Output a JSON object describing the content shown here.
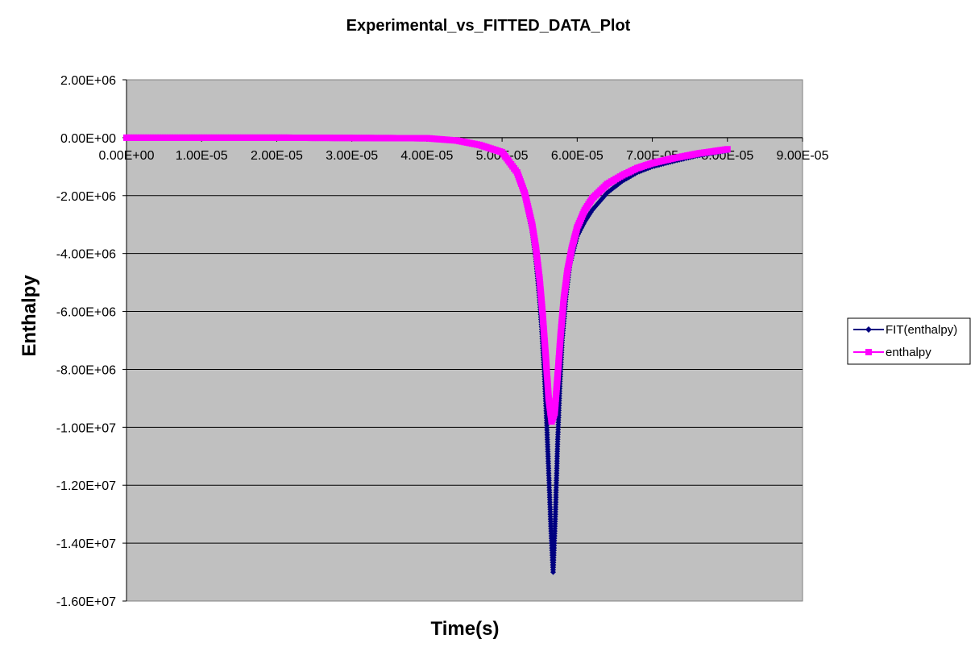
{
  "chart_data": {
    "type": "line",
    "title": "Experimental_vs_FITTED_DATA_Plot",
    "xlabel": "Time(s)",
    "ylabel": "Enthalpy",
    "xlim": [
      0,
      9e-05
    ],
    "ylim": [
      -16000000,
      2000000
    ],
    "x_ticks": [
      0,
      1e-05,
      2e-05,
      3e-05,
      4e-05,
      5e-05,
      6e-05,
      7e-05,
      8e-05,
      9e-05
    ],
    "x_tick_labels": [
      "0.00E+00",
      "1.00E-05",
      "2.00E-05",
      "3.00E-05",
      "4.00E-05",
      "5.00E-05",
      "6.00E-05",
      "7.00E-05",
      "8.00E-05",
      "9.00E-05"
    ],
    "y_ticks": [
      2000000,
      0,
      -2000000,
      -4000000,
      -6000000,
      -8000000,
      -10000000,
      -12000000,
      -14000000,
      -16000000
    ],
    "y_tick_labels": [
      "2.00E+06",
      "0.00E+00",
      "-2.00E+06",
      "-4.00E+06",
      "-6.00E+06",
      "-8.00E+06",
      "-1.00E+07",
      "-1.20E+07",
      "-1.40E+07",
      "-1.60E+07"
    ],
    "grid": "horizontal",
    "legend_position": "right",
    "plot_background": "#c0c0c0",
    "series": [
      {
        "name": "FIT(enthalpy)",
        "color": "#000080",
        "marker": "diamond",
        "x": [
          0,
          2e-05,
          4e-05,
          4.4e-05,
          4.7e-05,
          5e-05,
          5.2e-05,
          5.3e-05,
          5.4e-05,
          5.45e-05,
          5.5e-05,
          5.53e-05,
          5.56e-05,
          5.59e-05,
          5.62e-05,
          5.65e-05,
          5.68e-05,
          5.71e-05,
          5.74e-05,
          5.77e-05,
          5.8e-05,
          5.85e-05,
          5.9e-05,
          6e-05,
          6.1e-05,
          6.2e-05,
          6.4e-05,
          6.6e-05,
          6.8e-05,
          7e-05,
          7.3e-05,
          7.6e-05,
          8e-05
        ],
        "y": [
          0,
          0,
          -20000,
          -100000,
          -250000,
          -500000,
          -1200000,
          -2000000,
          -3200000,
          -4200000,
          -5600000,
          -6700000,
          -8000000,
          -9600000,
          -11500000,
          -13500000,
          -15000000,
          -13000000,
          -10500000,
          -8500000,
          -7000000,
          -5500000,
          -4400000,
          -3400000,
          -2900000,
          -2500000,
          -1900000,
          -1500000,
          -1200000,
          -1000000,
          -800000,
          -620000,
          -450000
        ]
      },
      {
        "name": "enthalpy",
        "color": "#ff00ff",
        "marker": "square",
        "x": [
          0,
          2e-05,
          4e-05,
          4.4e-05,
          4.7e-05,
          5e-05,
          5.2e-05,
          5.3e-05,
          5.4e-05,
          5.45e-05,
          5.5e-05,
          5.54e-05,
          5.58e-05,
          5.62e-05,
          5.66e-05,
          5.7e-05,
          5.74e-05,
          5.78e-05,
          5.82e-05,
          5.87e-05,
          5.93e-05,
          6e-05,
          6.1e-05,
          6.2e-05,
          6.4e-05,
          6.6e-05,
          6.8e-05,
          7e-05,
          7.3e-05,
          7.6e-05,
          8e-05
        ],
        "y": [
          0,
          0,
          -20000,
          -100000,
          -250000,
          -500000,
          -1200000,
          -1900000,
          -3000000,
          -3800000,
          -4900000,
          -6100000,
          -7500000,
          -9000000,
          -9800000,
          -9500000,
          -8200000,
          -6800000,
          -5600000,
          -4600000,
          -3800000,
          -3100000,
          -2500000,
          -2100000,
          -1600000,
          -1300000,
          -1050000,
          -880000,
          -700000,
          -550000,
          -400000
        ]
      }
    ]
  }
}
